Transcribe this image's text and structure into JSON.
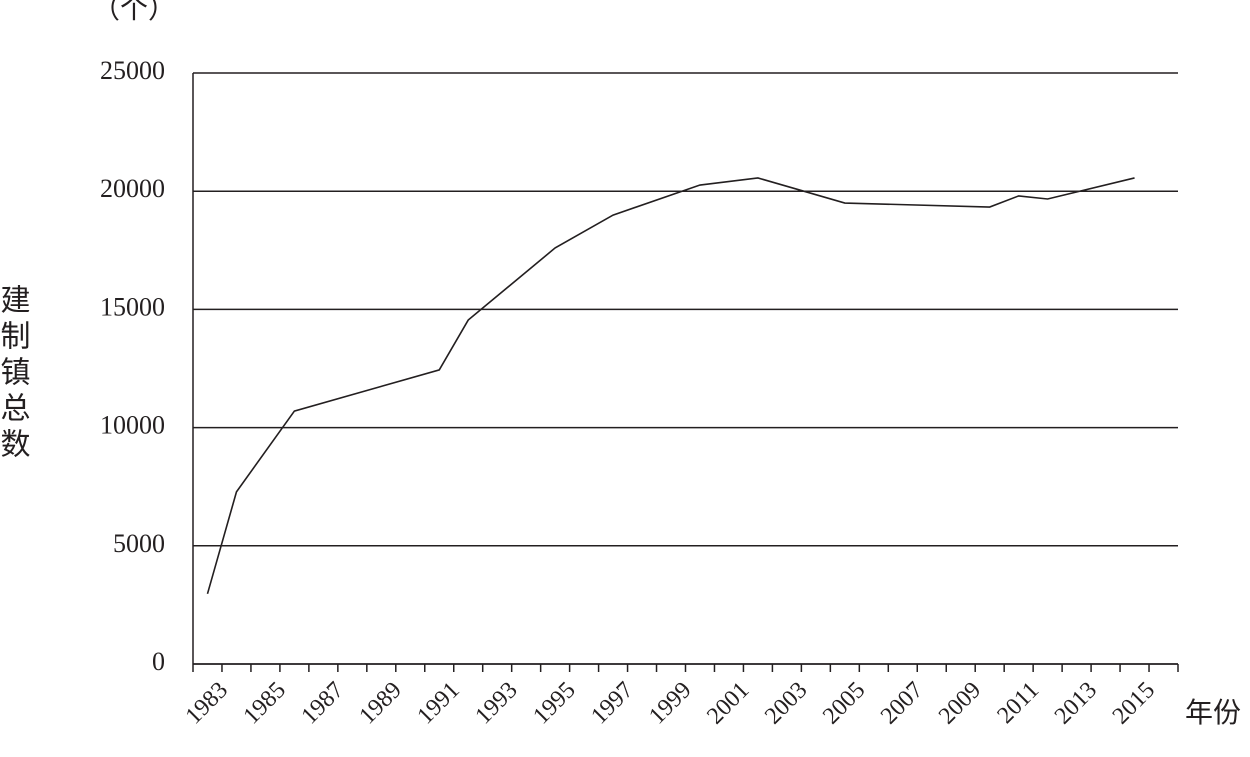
{
  "chart_data": {
    "type": "line",
    "unit_label": "（个）",
    "y_label": "建制镇总数",
    "x_label": "年份",
    "x": [
      1983,
      1984,
      1986,
      1991,
      1992,
      1995,
      1997,
      2000,
      2002,
      2005,
      2010,
      2011,
      2012,
      2015
    ],
    "series": [
      {
        "name": "建制镇总数",
        "color": "#231f20",
        "values": [
          2968,
          7280,
          10700,
          12440,
          14550,
          17600,
          18990,
          20260,
          20560,
          19500,
          19330,
          19800,
          19670,
          20560
        ]
      }
    ],
    "xlim": [
      1982.5,
      2016.5
    ],
    "xticks": [
      1983,
      1985,
      1987,
      1989,
      1991,
      1993,
      1995,
      1997,
      1999,
      2001,
      2003,
      2005,
      2007,
      2009,
      2011,
      2013,
      2015
    ],
    "ylim": [
      0,
      25000
    ],
    "yticks": [
      0,
      5000,
      10000,
      15000,
      20000,
      25000
    ],
    "grid": true
  }
}
